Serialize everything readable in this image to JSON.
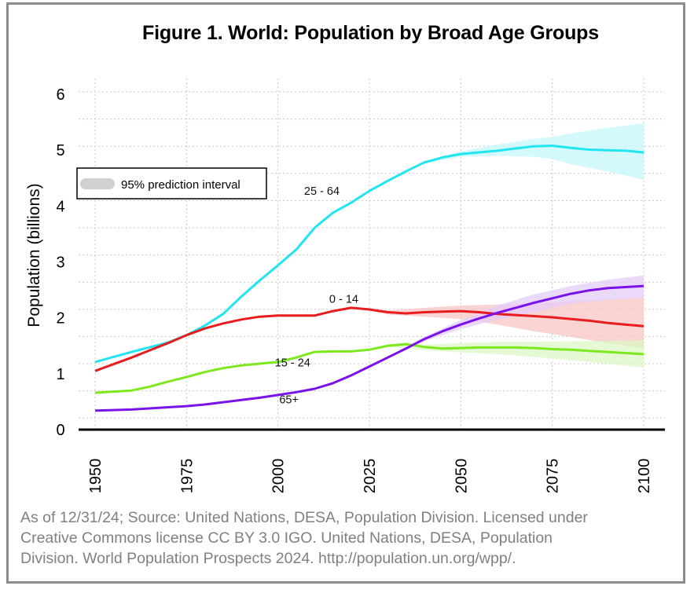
{
  "chart_data": {
    "type": "line",
    "title": "Figure 1. World: Population by Broad Age Groups",
    "xlabel": "",
    "ylabel": "Population (billions)",
    "xlim": [
      1950,
      2100
    ],
    "ylim": [
      0,
      6
    ],
    "x_ticks": [
      1950,
      1975,
      2000,
      2025,
      2050,
      2075,
      2100
    ],
    "y_ticks": [
      0,
      1,
      2,
      3,
      4,
      5,
      6
    ],
    "grid": true,
    "legend": {
      "placement": "upper-left",
      "entries": [
        {
          "label": "95% prediction interval",
          "color": "#d0d0d0"
        }
      ]
    },
    "series": [
      {
        "name": "25 - 64",
        "color": "#22e5f0",
        "band_color": "#c6f7fb",
        "points": [
          [
            1950,
            1.21
          ],
          [
            1960,
            1.39
          ],
          [
            1970,
            1.56
          ],
          [
            1975,
            1.69
          ],
          [
            1980,
            1.86
          ],
          [
            1985,
            2.07
          ],
          [
            1990,
            2.38
          ],
          [
            1995,
            2.67
          ],
          [
            2000,
            2.94
          ],
          [
            2005,
            3.22
          ],
          [
            2010,
            3.61
          ],
          [
            2015,
            3.88
          ],
          [
            2020,
            4.06
          ],
          [
            2025,
            4.27
          ],
          [
            2030,
            4.45
          ],
          [
            2035,
            4.62
          ],
          [
            2040,
            4.78
          ],
          [
            2045,
            4.87
          ],
          [
            2050,
            4.93
          ],
          [
            2055,
            4.96
          ],
          [
            2060,
            4.99
          ],
          [
            2065,
            5.03
          ],
          [
            2070,
            5.07
          ],
          [
            2075,
            5.08
          ],
          [
            2080,
            5.04
          ],
          [
            2085,
            5.01
          ],
          [
            2090,
            5.0
          ],
          [
            2095,
            4.99
          ],
          [
            2100,
            4.96
          ]
        ],
        "band": [
          [
            2023,
            4.23,
            4.23
          ],
          [
            2030,
            4.45,
            4.45
          ],
          [
            2040,
            4.8,
            4.76
          ],
          [
            2050,
            4.98,
            4.88
          ],
          [
            2060,
            5.1,
            4.9
          ],
          [
            2070,
            5.2,
            4.88
          ],
          [
            2075,
            5.24,
            4.84
          ],
          [
            2080,
            5.3,
            4.75
          ],
          [
            2090,
            5.4,
            4.62
          ],
          [
            2100,
            5.48,
            4.47
          ]
        ],
        "label_at": [
          2012,
          4.2
        ]
      },
      {
        "name": "0 - 14",
        "color": "#e81c1c",
        "band_color": "#f8c4c4",
        "points": [
          [
            1950,
            1.05
          ],
          [
            1955,
            1.17
          ],
          [
            1960,
            1.29
          ],
          [
            1965,
            1.42
          ],
          [
            1970,
            1.55
          ],
          [
            1975,
            1.69
          ],
          [
            1980,
            1.81
          ],
          [
            1985,
            1.9
          ],
          [
            1990,
            1.97
          ],
          [
            1995,
            2.02
          ],
          [
            2000,
            2.04
          ],
          [
            2005,
            2.04
          ],
          [
            2010,
            2.04
          ],
          [
            2015,
            2.12
          ],
          [
            2020,
            2.18
          ],
          [
            2025,
            2.15
          ],
          [
            2030,
            2.1
          ],
          [
            2035,
            2.08
          ],
          [
            2040,
            2.1
          ],
          [
            2045,
            2.11
          ],
          [
            2050,
            2.12
          ],
          [
            2055,
            2.1
          ],
          [
            2060,
            2.07
          ],
          [
            2065,
            2.05
          ],
          [
            2070,
            2.03
          ],
          [
            2075,
            2.01
          ],
          [
            2080,
            1.98
          ],
          [
            2085,
            1.95
          ],
          [
            2090,
            1.91
          ],
          [
            2095,
            1.88
          ],
          [
            2100,
            1.85
          ]
        ],
        "band": [
          [
            2023,
            2.16,
            2.16
          ],
          [
            2030,
            2.13,
            2.06
          ],
          [
            2040,
            2.18,
            2.02
          ],
          [
            2050,
            2.22,
            1.98
          ],
          [
            2060,
            2.24,
            1.88
          ],
          [
            2070,
            2.26,
            1.76
          ],
          [
            2080,
            2.3,
            1.66
          ],
          [
            2090,
            2.33,
            1.55
          ],
          [
            2100,
            2.36,
            1.45
          ]
        ],
        "label_at": [
          2018,
          2.27
        ]
      },
      {
        "name": "15 - 24",
        "color": "#7ee81e",
        "band_color": "#dcf8c6",
        "points": [
          [
            1950,
            0.66
          ],
          [
            1955,
            0.68
          ],
          [
            1960,
            0.7
          ],
          [
            1965,
            0.77
          ],
          [
            1970,
            0.86
          ],
          [
            1975,
            0.94
          ],
          [
            1980,
            1.03
          ],
          [
            1985,
            1.1
          ],
          [
            1990,
            1.15
          ],
          [
            1995,
            1.18
          ],
          [
            2000,
            1.21
          ],
          [
            2005,
            1.29
          ],
          [
            2010,
            1.39
          ],
          [
            2015,
            1.4
          ],
          [
            2020,
            1.4
          ],
          [
            2025,
            1.43
          ],
          [
            2030,
            1.5
          ],
          [
            2035,
            1.53
          ],
          [
            2040,
            1.48
          ],
          [
            2045,
            1.45
          ],
          [
            2050,
            1.46
          ],
          [
            2055,
            1.47
          ],
          [
            2060,
            1.47
          ],
          [
            2065,
            1.47
          ],
          [
            2070,
            1.46
          ],
          [
            2075,
            1.44
          ],
          [
            2080,
            1.43
          ],
          [
            2085,
            1.41
          ],
          [
            2090,
            1.39
          ],
          [
            2095,
            1.37
          ],
          [
            2100,
            1.35
          ]
        ],
        "band": [
          [
            2023,
            1.42,
            1.42
          ],
          [
            2030,
            1.53,
            1.48
          ],
          [
            2040,
            1.52,
            1.42
          ],
          [
            2050,
            1.55,
            1.38
          ],
          [
            2060,
            1.57,
            1.35
          ],
          [
            2070,
            1.57,
            1.3
          ],
          [
            2080,
            1.58,
            1.24
          ],
          [
            2090,
            1.59,
            1.18
          ],
          [
            2100,
            1.6,
            1.11
          ]
        ],
        "label_at": [
          2004,
          1.13
        ]
      },
      {
        "name": "65+",
        "color": "#7a12ea",
        "band_color": "#e4ccf8",
        "points": [
          [
            1950,
            0.34
          ],
          [
            1960,
            0.36
          ],
          [
            1970,
            0.4
          ],
          [
            1975,
            0.42
          ],
          [
            1980,
            0.45
          ],
          [
            1985,
            0.49
          ],
          [
            1990,
            0.53
          ],
          [
            1995,
            0.57
          ],
          [
            2000,
            0.62
          ],
          [
            2005,
            0.67
          ],
          [
            2010,
            0.73
          ],
          [
            2015,
            0.83
          ],
          [
            2020,
            0.97
          ],
          [
            2025,
            1.13
          ],
          [
            2030,
            1.29
          ],
          [
            2035,
            1.45
          ],
          [
            2040,
            1.62
          ],
          [
            2045,
            1.76
          ],
          [
            2050,
            1.88
          ],
          [
            2055,
            1.99
          ],
          [
            2060,
            2.09
          ],
          [
            2065,
            2.18
          ],
          [
            2070,
            2.27
          ],
          [
            2075,
            2.35
          ],
          [
            2080,
            2.43
          ],
          [
            2085,
            2.49
          ],
          [
            2090,
            2.53
          ],
          [
            2095,
            2.55
          ],
          [
            2100,
            2.57
          ]
        ],
        "band": [
          [
            2023,
            1.07,
            1.07
          ],
          [
            2030,
            1.31,
            1.27
          ],
          [
            2040,
            1.66,
            1.58
          ],
          [
            2050,
            1.96,
            1.8
          ],
          [
            2060,
            2.22,
            1.97
          ],
          [
            2070,
            2.42,
            2.1
          ],
          [
            2080,
            2.57,
            2.25
          ],
          [
            2090,
            2.68,
            2.32
          ],
          [
            2100,
            2.76,
            2.36
          ]
        ],
        "label_at": [
          2003,
          0.47
        ]
      }
    ]
  },
  "caption": {
    "lines": [
      "As of 12/31/24; Source: United Nations, DESA, Population Division. Licensed under",
      "Creative Commons license CC BY 3.0 IGO. United Nations, DESA, Population",
      "Division. World Population Prospects 2024. http://population.un.org/wpp/."
    ]
  }
}
